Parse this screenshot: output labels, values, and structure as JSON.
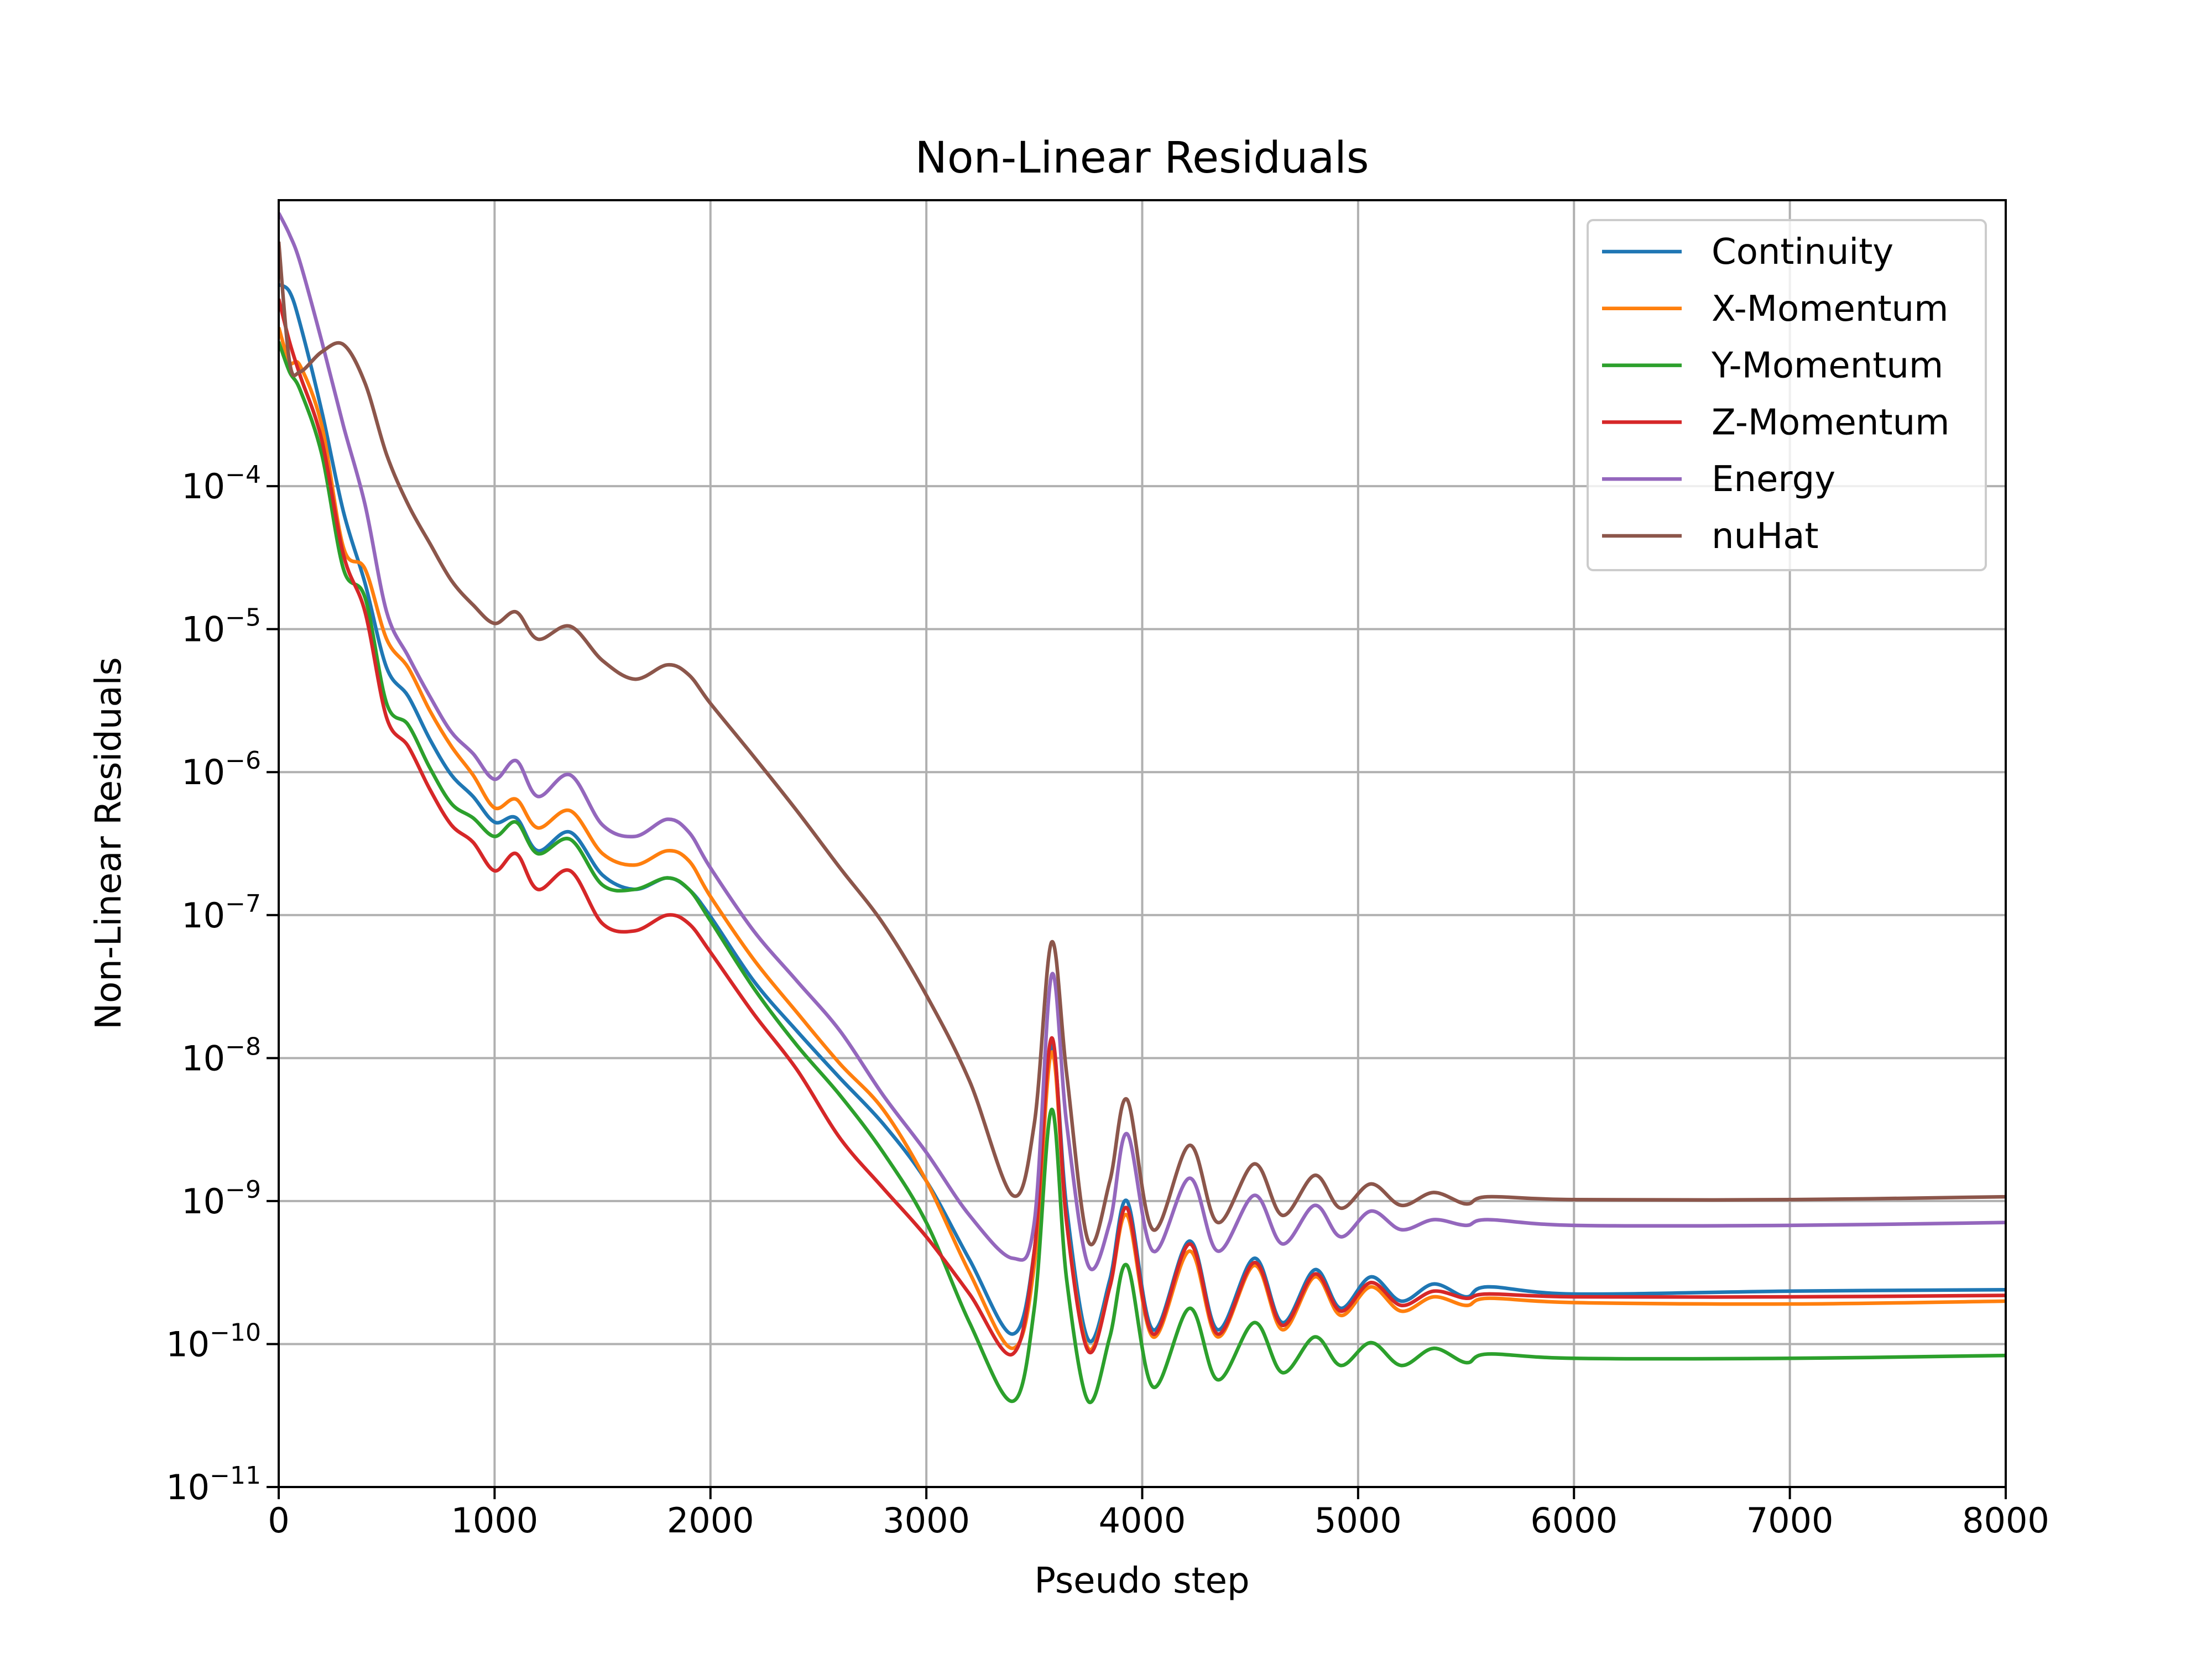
{
  "chart_data": {
    "type": "line",
    "title": "Non-Linear Residuals",
    "xlabel": "Pseudo step",
    "ylabel": "Non-Linear Residuals",
    "y_scale": "log",
    "value_encoding": "log10 of residual",
    "xlim": [
      0,
      8000
    ],
    "ylim": [
      1e-11,
      0.01
    ],
    "grid": true,
    "legend_position": "top-right",
    "x_ticks": [
      "0",
      "1000",
      "2000",
      "3000",
      "4000",
      "5000",
      "6000",
      "7000",
      "8000"
    ],
    "x_tick_values": [
      0,
      1000,
      2000,
      3000,
      4000,
      5000,
      6000,
      7000,
      8000
    ],
    "y_ticks": [
      {
        "base": "10",
        "exp": "−11",
        "value": -11
      },
      {
        "base": "10",
        "exp": "−10",
        "value": -10
      },
      {
        "base": "10",
        "exp": "−9",
        "value": -9
      },
      {
        "base": "10",
        "exp": "−8",
        "value": -8
      },
      {
        "base": "10",
        "exp": "−7",
        "value": -7
      },
      {
        "base": "10",
        "exp": "−6",
        "value": -6
      },
      {
        "base": "10",
        "exp": "−5",
        "value": -5
      },
      {
        "base": "10",
        "exp": "−4",
        "value": -4
      }
    ],
    "x": [
      0,
      50,
      100,
      200,
      300,
      400,
      500,
      600,
      700,
      800,
      900,
      1000,
      1100,
      1200,
      1350,
      1500,
      1650,
      1800,
      1900,
      2000,
      2200,
      2400,
      2600,
      2800,
      3000,
      3200,
      3400,
      3500,
      3580,
      3650,
      3750,
      3850,
      3930,
      4050,
      4220,
      4350,
      4520,
      4650,
      4800,
      4920,
      5060,
      5200,
      5350,
      5500,
      5600,
      6000,
      7000,
      8000
    ],
    "series": [
      {
        "name": "Continuity",
        "color": "#1f77b4",
        "log10_values": [
          -2.59,
          -2.64,
          -2.87,
          -3.48,
          -4.18,
          -4.68,
          -5.27,
          -5.47,
          -5.77,
          -6.02,
          -6.17,
          -6.35,
          -6.32,
          -6.55,
          -6.42,
          -6.72,
          -6.82,
          -6.74,
          -6.82,
          -7.01,
          -7.46,
          -7.81,
          -8.14,
          -8.46,
          -8.86,
          -9.41,
          -9.93,
          -9.35,
          -7.91,
          -9.05,
          -9.97,
          -9.55,
          -9.0,
          -9.9,
          -9.28,
          -9.9,
          -9.4,
          -9.85,
          -9.48,
          -9.75,
          -9.53,
          -9.7,
          -9.58,
          -9.67,
          -9.6,
          -9.65,
          -9.63,
          -9.62
        ]
      },
      {
        "name": "X-Momentum",
        "color": "#ff7f0e",
        "log10_values": [
          -2.89,
          -3.13,
          -3.16,
          -3.58,
          -4.43,
          -4.58,
          -5.07,
          -5.27,
          -5.57,
          -5.82,
          -6.02,
          -6.25,
          -6.19,
          -6.39,
          -6.27,
          -6.57,
          -6.65,
          -6.55,
          -6.62,
          -6.87,
          -7.31,
          -7.68,
          -8.04,
          -8.36,
          -8.86,
          -9.5,
          -10.03,
          -9.45,
          -7.96,
          -9.15,
          -10.03,
          -9.6,
          -9.1,
          -9.95,
          -9.35,
          -9.95,
          -9.45,
          -9.9,
          -9.53,
          -9.8,
          -9.6,
          -9.77,
          -9.67,
          -9.73,
          -9.68,
          -9.71,
          -9.72,
          -9.7
        ]
      },
      {
        "name": "Y-Momentum",
        "color": "#2ca02c",
        "log10_values": [
          -2.99,
          -3.2,
          -3.33,
          -3.78,
          -4.58,
          -4.78,
          -5.52,
          -5.67,
          -5.97,
          -6.22,
          -6.32,
          -6.45,
          -6.35,
          -6.57,
          -6.47,
          -6.79,
          -6.82,
          -6.74,
          -6.82,
          -7.04,
          -7.51,
          -7.91,
          -8.26,
          -8.66,
          -9.15,
          -9.85,
          -10.4,
          -9.75,
          -8.36,
          -9.55,
          -10.4,
          -9.95,
          -9.45,
          -10.3,
          -9.75,
          -10.25,
          -9.85,
          -10.2,
          -9.95,
          -10.15,
          -9.99,
          -10.15,
          -10.03,
          -10.13,
          -10.07,
          -10.1,
          -10.1,
          -10.08
        ]
      },
      {
        "name": "Z-Momentum",
        "color": "#d62728",
        "log10_values": [
          -2.69,
          -2.99,
          -3.23,
          -3.68,
          -4.48,
          -4.88,
          -5.62,
          -5.82,
          -6.12,
          -6.37,
          -6.49,
          -6.69,
          -6.57,
          -6.82,
          -6.69,
          -7.06,
          -7.11,
          -7.0,
          -7.06,
          -7.26,
          -7.69,
          -8.08,
          -8.56,
          -8.91,
          -9.25,
          -9.65,
          -10.07,
          -9.35,
          -7.86,
          -9.15,
          -10.05,
          -9.6,
          -9.05,
          -9.93,
          -9.3,
          -9.93,
          -9.43,
          -9.87,
          -9.51,
          -9.77,
          -9.57,
          -9.73,
          -9.63,
          -9.68,
          -9.65,
          -9.67,
          -9.67,
          -9.66
        ]
      },
      {
        "name": "Energy",
        "color": "#9467bd",
        "log10_values": [
          -2.09,
          -2.24,
          -2.44,
          -2.99,
          -3.58,
          -4.13,
          -4.88,
          -5.19,
          -5.47,
          -5.72,
          -5.87,
          -6.05,
          -5.92,
          -6.17,
          -6.02,
          -6.37,
          -6.45,
          -6.33,
          -6.42,
          -6.67,
          -7.11,
          -7.46,
          -7.81,
          -8.26,
          -8.66,
          -9.1,
          -9.4,
          -9.15,
          -7.42,
          -8.46,
          -9.45,
          -9.15,
          -8.53,
          -9.35,
          -8.84,
          -9.35,
          -8.96,
          -9.3,
          -9.03,
          -9.25,
          -9.07,
          -9.2,
          -9.13,
          -9.17,
          -9.13,
          -9.17,
          -9.17,
          -9.15
        ]
      },
      {
        "name": "nuHat",
        "color": "#8c564b",
        "log10_values": [
          -2.29,
          -3.13,
          -3.2,
          -3.06,
          -3.01,
          -3.28,
          -3.78,
          -4.13,
          -4.4,
          -4.66,
          -4.83,
          -4.96,
          -4.88,
          -5.07,
          -4.98,
          -5.22,
          -5.35,
          -5.25,
          -5.32,
          -5.52,
          -5.89,
          -6.27,
          -6.67,
          -7.06,
          -7.56,
          -8.16,
          -8.96,
          -8.46,
          -7.19,
          -8.11,
          -9.28,
          -8.86,
          -8.29,
          -9.2,
          -8.61,
          -9.15,
          -8.74,
          -9.1,
          -8.82,
          -9.05,
          -8.88,
          -9.03,
          -8.94,
          -9.02,
          -8.97,
          -8.99,
          -8.99,
          -8.97
        ]
      }
    ]
  }
}
